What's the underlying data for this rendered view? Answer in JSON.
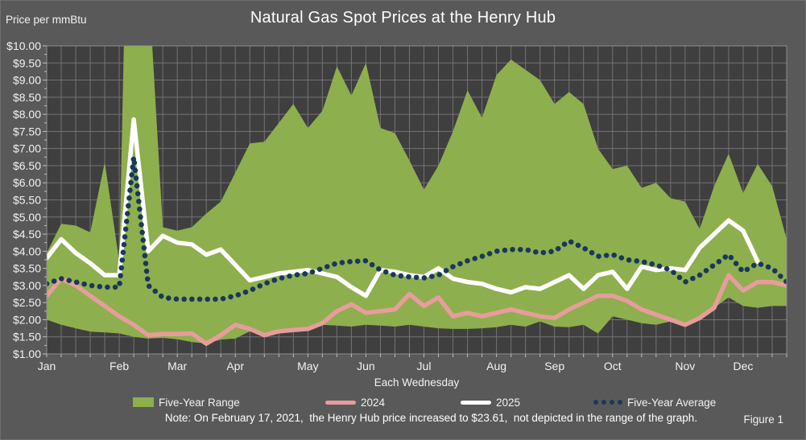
{
  "note": "Note: On February 17, 2021,  the Henry Hub price increased to $23.61,  not depicted in the range of the graph.",
  "figure_label": "Figure 1",
  "chart_data": {
    "type": "area",
    "subtype": "range-band-with-lines",
    "title": "Natural Gas Spot Prices at the Henry Hub",
    "xlabel": "Each Wednesday",
    "ylabel": "Price per mmBtu",
    "ylim": [
      1.0,
      10.0
    ],
    "ytick_step": 0.5,
    "grid": true,
    "legend_position": "bottom",
    "weeks": 52,
    "month_labels": [
      "Jan",
      "Feb",
      "Mar",
      "Apr",
      "May",
      "Jun",
      "Jul",
      "Aug",
      "Sep",
      "Oct",
      "Nov",
      "Dec"
    ],
    "month_start_index": [
      0,
      5,
      9,
      13,
      18,
      22,
      26,
      31,
      35,
      39,
      44,
      48
    ],
    "ytick_labels": [
      "$1.00",
      "$1.50",
      "$2.00",
      "$2.50",
      "$3.00",
      "$3.50",
      "$4.00",
      "$4.50",
      "$5.00",
      "$5.50",
      "$6.00",
      "$6.50",
      "$7.00",
      "$7.50",
      "$8.00",
      "$8.50",
      "$9.00",
      "$9.50",
      "$10.00"
    ],
    "colors": {
      "background": "#595959",
      "plot_background": "#3f3f3f",
      "gridline": "#737373",
      "axis_tick": "#bfbfbf",
      "plot_border": "#8f8f8f",
      "text": "#f2f2f2"
    },
    "series": [
      {
        "name": "Five-Year Range",
        "type": "band",
        "color": "#8eaf4d",
        "high": [
          3.95,
          4.8,
          4.75,
          4.55,
          6.6,
          3.7,
          23.61,
          12.0,
          4.7,
          4.6,
          4.7,
          5.1,
          5.45,
          6.3,
          7.15,
          7.2,
          7.75,
          8.3,
          7.6,
          8.1,
          9.4,
          8.55,
          9.5,
          7.6,
          7.45,
          6.65,
          5.8,
          6.5,
          7.5,
          8.7,
          7.9,
          9.15,
          9.6,
          9.3,
          9.0,
          8.3,
          8.65,
          8.3,
          7.0,
          6.4,
          6.5,
          5.85,
          6.0,
          5.55,
          5.45,
          4.65,
          5.9,
          6.85,
          5.7,
          6.55,
          5.9,
          4.35
        ],
        "low": [
          2.0,
          1.85,
          1.75,
          1.65,
          1.63,
          1.6,
          1.5,
          1.45,
          1.47,
          1.43,
          1.35,
          1.3,
          1.42,
          1.45,
          1.66,
          1.55,
          1.66,
          1.72,
          1.75,
          1.85,
          1.83,
          1.8,
          1.85,
          1.83,
          1.8,
          1.85,
          1.8,
          1.75,
          1.73,
          1.73,
          1.75,
          1.78,
          1.85,
          1.8,
          1.95,
          1.8,
          1.78,
          1.85,
          1.6,
          2.1,
          2.0,
          1.9,
          1.85,
          1.95,
          1.85,
          2.05,
          2.35,
          2.65,
          2.4,
          2.35,
          2.4,
          2.4
        ]
      },
      {
        "name": "2024",
        "type": "line",
        "color": "#e69d9c",
        "values": [
          2.7,
          3.2,
          3.0,
          2.7,
          2.4,
          2.1,
          1.85,
          1.55,
          1.58,
          1.58,
          1.6,
          1.3,
          1.55,
          1.85,
          1.73,
          1.55,
          1.66,
          1.7,
          1.73,
          1.9,
          2.25,
          2.45,
          2.2,
          2.25,
          2.3,
          2.75,
          2.4,
          2.65,
          2.1,
          2.2,
          2.1,
          2.2,
          2.3,
          2.2,
          2.1,
          2.05,
          2.3,
          2.5,
          2.7,
          2.7,
          2.55,
          2.3,
          2.15,
          2.0,
          1.85,
          2.05,
          2.35,
          3.3,
          2.85,
          3.1,
          3.1,
          3.0
        ]
      },
      {
        "name": "2025",
        "type": "line",
        "color": "#ffffff",
        "values": [
          3.8,
          4.35,
          3.95,
          3.65,
          3.3,
          3.3,
          7.85,
          4.0,
          4.45,
          4.25,
          4.2,
          3.9,
          4.05,
          3.6,
          3.15,
          3.25,
          3.35,
          3.4,
          3.45,
          3.35,
          3.25,
          2.95,
          2.7,
          3.45,
          3.4,
          3.3,
          3.25,
          3.5,
          3.2,
          3.1,
          3.05,
          2.9,
          2.8,
          2.95,
          2.9,
          3.1,
          3.3,
          2.9,
          3.3,
          3.4,
          2.9,
          3.55,
          3.45,
          3.5,
          3.45,
          4.1,
          4.5,
          4.9,
          4.6,
          3.7
        ]
      },
      {
        "name": "Five-Year Average",
        "type": "dots",
        "color": "#1a375d",
        "values": [
          3.05,
          3.2,
          3.1,
          3.0,
          2.95,
          2.95,
          6.75,
          3.0,
          2.65,
          2.6,
          2.6,
          2.6,
          2.6,
          2.7,
          2.85,
          3.05,
          3.2,
          3.3,
          3.35,
          3.5,
          3.65,
          3.7,
          3.72,
          3.45,
          3.3,
          3.25,
          3.22,
          3.3,
          3.55,
          3.72,
          3.85,
          4.0,
          4.05,
          4.05,
          3.95,
          4.0,
          4.3,
          4.1,
          3.85,
          3.9,
          3.75,
          3.7,
          3.6,
          3.45,
          3.1,
          3.3,
          3.6,
          3.9,
          3.4,
          3.65,
          3.5,
          3.1
        ]
      }
    ]
  }
}
